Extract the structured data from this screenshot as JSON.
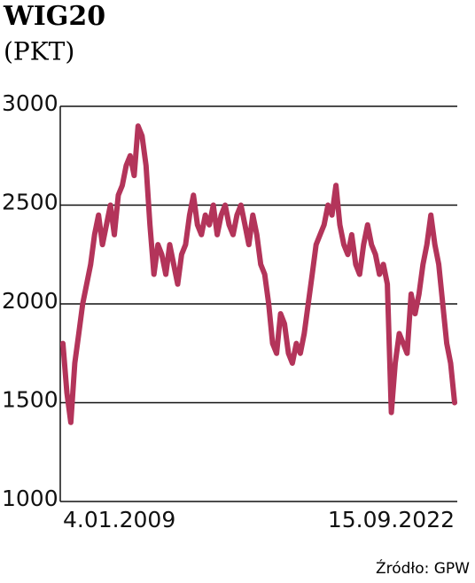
{
  "chart_data": {
    "type": "line",
    "title": "WIG20",
    "subtitle": "(PKT)",
    "source": "Źródło: GPW",
    "categories": [
      "4.01.2009",
      null,
      null,
      null,
      null,
      null,
      null,
      null,
      null,
      null,
      null,
      null,
      null,
      null,
      null,
      null,
      null,
      null,
      null,
      null,
      null,
      null,
      null,
      null,
      null,
      null,
      null,
      null,
      null,
      null,
      null,
      null,
      null,
      null,
      null,
      null,
      null,
      null,
      null,
      null,
      null,
      null,
      null,
      null,
      null,
      null,
      null,
      null,
      null,
      null,
      null,
      null,
      null,
      null,
      null,
      null,
      null,
      null,
      null,
      null,
      null,
      null,
      null,
      null,
      null,
      null,
      null,
      null,
      null,
      null,
      null,
      null,
      null,
      null,
      null,
      null,
      null,
      null,
      null,
      null,
      null,
      null,
      null,
      null,
      null,
      null,
      null,
      null,
      null,
      null,
      null,
      null,
      null,
      null,
      null,
      null,
      null,
      null,
      null,
      "15.09.2022"
    ],
    "series": [
      {
        "name": "WIG20",
        "color": "#b3345a",
        "values": [
          1800,
          1550,
          1400,
          1700,
          1850,
          2000,
          2100,
          2200,
          2350,
          2450,
          2300,
          2400,
          2500,
          2350,
          2550,
          2600,
          2700,
          2750,
          2650,
          2900,
          2850,
          2700,
          2400,
          2150,
          2300,
          2250,
          2150,
          2300,
          2200,
          2100,
          2250,
          2300,
          2450,
          2550,
          2400,
          2350,
          2450,
          2400,
          2500,
          2350,
          2450,
          2500,
          2400,
          2350,
          2450,
          2500,
          2400,
          2300,
          2450,
          2350,
          2200,
          2150,
          2000,
          1800,
          1750,
          1950,
          1900,
          1750,
          1700,
          1800,
          1750,
          1850,
          2000,
          2150,
          2300,
          2350,
          2400,
          2500,
          2450,
          2600,
          2400,
          2300,
          2250,
          2350,
          2200,
          2150,
          2300,
          2400,
          2300,
          2250,
          2150,
          2200,
          2100,
          1450,
          1700,
          1850,
          1800,
          1750,
          2050,
          1950,
          2050,
          2200,
          2300,
          2450,
          2300,
          2200,
          2000,
          1800,
          1700,
          1500
        ]
      }
    ],
    "ylim": [
      1000,
      3000
    ],
    "yticks": [
      1000,
      1500,
      2000,
      2500,
      3000
    ],
    "grid": true
  }
}
